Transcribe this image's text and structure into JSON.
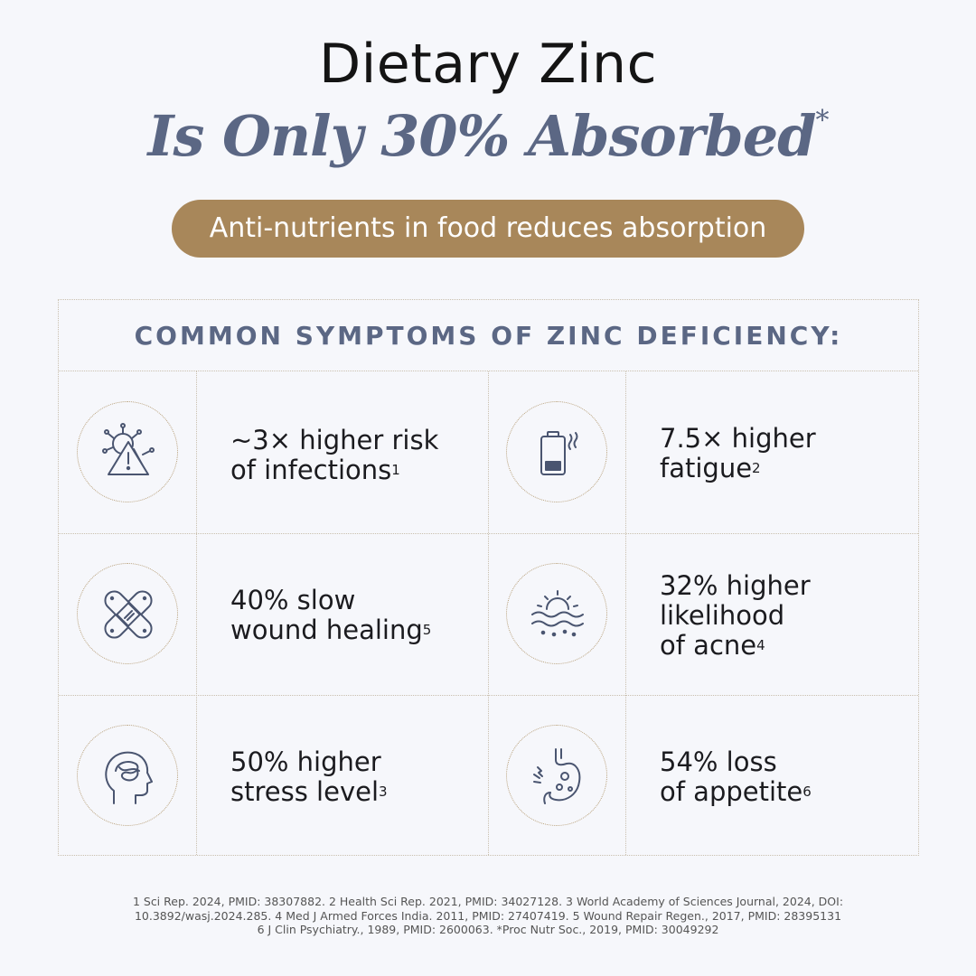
{
  "header": {
    "title": "Dietary Zinc",
    "subtitle": "Is Only 30% Absorbed",
    "subtitle_mark": "*",
    "pill": "Anti-nutrients in food reduces absorption"
  },
  "panel": {
    "heading": "COMMON SYMPTOMS OF ZINC DEFICIENCY:",
    "items": [
      {
        "icon": "virus-warning-icon",
        "lines": [
          "~3× higher risk",
          "of infections"
        ],
        "ref": "1"
      },
      {
        "icon": "low-battery-icon",
        "lines": [
          "7.5× higher",
          "fatigue"
        ],
        "ref": "2"
      },
      {
        "icon": "bandage-icon",
        "lines": [
          "40% slow",
          "wound healing"
        ],
        "ref": "5"
      },
      {
        "icon": "skin-layers-icon",
        "lines": [
          "32% higher",
          "likelihood",
          "of acne"
        ],
        "ref": "4"
      },
      {
        "icon": "stressed-head-icon",
        "lines": [
          "50% higher",
          "stress level"
        ],
        "ref": "3"
      },
      {
        "icon": "stomach-icon",
        "lines": [
          "54% loss",
          "of appetite"
        ],
        "ref": "6"
      }
    ]
  },
  "references": [
    "1 Sci Rep. 2024, PMID: 38307882. 2 Health Sci Rep. 2021, PMID: 34027128. 3 World Academy of Sciences Journal, 2024, DOI:",
    "10.3892/wasj.2024.285. 4 Med J Armed Forces India. 2011, PMID: 27407419. 5 Wound Repair Regen., 2017, PMID: 28395131",
    "6 J Clin Psychiatry., 1989, PMID: 2600063. *Proc Nutr Soc., 2019, PMID: 30049292"
  ],
  "colors": {
    "background": "#f6f7fb",
    "accent_blue": "#5b6784",
    "pill_gold": "#a8875a",
    "dotted_border": "#c9bfae"
  }
}
